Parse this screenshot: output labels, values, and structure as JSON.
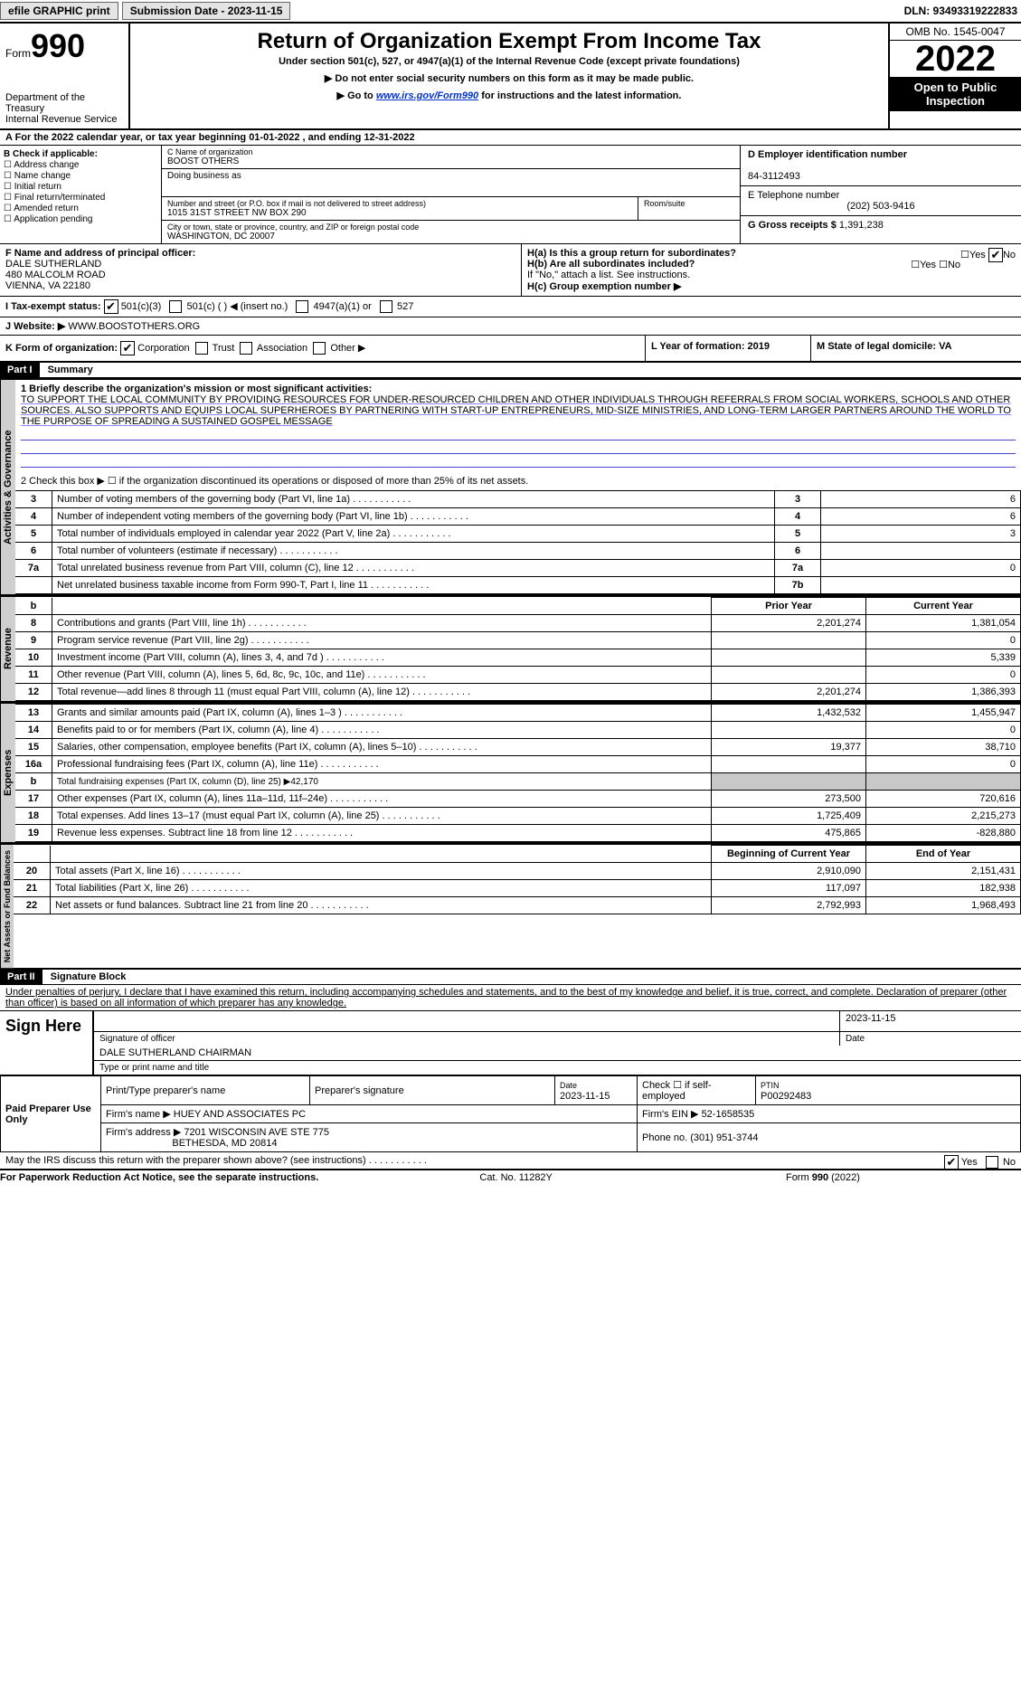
{
  "topbar": {
    "btn_efile": "efile GRAPHIC print",
    "btn_sub": "Submission Date - 2023-11-15",
    "dln": "DLN: 93493319222833"
  },
  "header": {
    "form_word": "Form",
    "form_num": "990",
    "dept": "Department of the Treasury",
    "irs": "Internal Revenue Service",
    "title": "Return of Organization Exempt From Income Tax",
    "sub1": "Under section 501(c), 527, or 4947(a)(1) of the Internal Revenue Code (except private foundations)",
    "sub2": "▶ Do not enter social security numbers on this form as it may be made public.",
    "sub3_pre": "▶ Go to ",
    "sub3_link": "www.irs.gov/Form990",
    "sub3_post": " for instructions and the latest information.",
    "omb": "OMB No. 1545-0047",
    "year": "2022",
    "inspect": "Open to Public Inspection"
  },
  "rowA": "A For the 2022 calendar year, or tax year beginning 01-01-2022    , and ending 12-31-2022",
  "B": {
    "title": "B Check if applicable:",
    "items": [
      "Address change",
      "Name change",
      "Initial return",
      "Final return/terminated",
      "Amended return",
      "Application pending"
    ]
  },
  "C": {
    "name_lbl": "C Name of organization",
    "name": "BOOST OTHERS",
    "dba_lbl": "Doing business as",
    "addr_lbl": "Number and street (or P.O. box if mail is not delivered to street address)",
    "room_lbl": "Room/suite",
    "addr": "1015 31ST STREET NW BOX 290",
    "city_lbl": "City or town, state or province, country, and ZIP or foreign postal code",
    "city": "WASHINGTON, DC  20007"
  },
  "D": {
    "lbl": "D Employer identification number",
    "val": "84-3112493"
  },
  "E": {
    "lbl": "E Telephone number",
    "val": "(202) 503-9416"
  },
  "G": {
    "lbl": "G Gross receipts $",
    "val": "1,391,238"
  },
  "F": {
    "lbl": "F  Name and address of principal officer:",
    "name": "DALE SUTHERLAND",
    "addr1": "480 MALCOLM ROAD",
    "addr2": "VIENNA, VA  22180"
  },
  "H": {
    "a": "H(a)  Is this a group return for subordinates?",
    "b": "H(b)  Are all subordinates included?",
    "note": "If \"No,\" attach a list. See instructions.",
    "c": "H(c)  Group exemption number ▶"
  },
  "I": "I     Tax-exempt status:",
  "I_opts": [
    "501(c)(3)",
    "501(c) (  ) ◀ (insert no.)",
    "4947(a)(1) or",
    "527"
  ],
  "J": {
    "lbl": "J    Website: ▶",
    "val": "WWW.BOOSTOTHERS.ORG"
  },
  "K": {
    "lbl": "K Form of organization:",
    "opts": [
      "Corporation",
      "Trust",
      "Association",
      "Other ▶"
    ]
  },
  "L": "L Year of formation: 2019",
  "M": "M State of legal domicile: VA",
  "partI": "Part I",
  "partI_title": "Summary",
  "mission_lbl": "1  Briefly describe the organization's mission or most significant activities:",
  "mission": "TO SUPPORT THE LOCAL COMMUNITY BY PROVIDING RESOURCES FOR UNDER-RESOURCED CHILDREN AND OTHER INDIVIDUALS THROUGH REFERRALS FROM SOCIAL WORKERS, SCHOOLS AND OTHER SOURCES. ALSO SUPPORTS AND EQUIPS LOCAL SUPERHEROES BY PARTNERING WITH START-UP ENTREPRENEURS, MID-SIZE MINISTRIES, AND LONG-TERM LARGER PARTNERS AROUND THE WORLD TO THE PURPOSE OF SPREADING A SUSTAINED GOSPEL MESSAGE",
  "line2": "2    Check this box ▶ ☐  if the organization discontinued its operations or disposed of more than 25% of its net assets.",
  "gov_rows": [
    {
      "n": "3",
      "d": "Number of voting members of the governing body (Part VI, line 1a)",
      "c": "3",
      "v": "6"
    },
    {
      "n": "4",
      "d": "Number of independent voting members of the governing body (Part VI, line 1b)",
      "c": "4",
      "v": "6"
    },
    {
      "n": "5",
      "d": "Total number of individuals employed in calendar year 2022 (Part V, line 2a)",
      "c": "5",
      "v": "3"
    },
    {
      "n": "6",
      "d": "Total number of volunteers (estimate if necessary)",
      "c": "6",
      "v": ""
    },
    {
      "n": "7a",
      "d": "Total unrelated business revenue from Part VIII, column (C), line 12",
      "c": "7a",
      "v": "0"
    },
    {
      "n": "",
      "d": "Net unrelated business taxable income from Form 990-T, Part I, line 11",
      "c": "7b",
      "v": ""
    }
  ],
  "rev_hdr": {
    "b": "b",
    "py": "Prior Year",
    "cy": "Current Year"
  },
  "rev_rows": [
    {
      "n": "8",
      "d": "Contributions and grants (Part VIII, line 1h)",
      "py": "2,201,274",
      "cy": "1,381,054"
    },
    {
      "n": "9",
      "d": "Program service revenue (Part VIII, line 2g)",
      "py": "",
      "cy": "0"
    },
    {
      "n": "10",
      "d": "Investment income (Part VIII, column (A), lines 3, 4, and 7d )",
      "py": "",
      "cy": "5,339"
    },
    {
      "n": "11",
      "d": "Other revenue (Part VIII, column (A), lines 5, 6d, 8c, 9c, 10c, and 11e)",
      "py": "",
      "cy": "0"
    },
    {
      "n": "12",
      "d": "Total revenue—add lines 8 through 11 (must equal Part VIII, column (A), line 12)",
      "py": "2,201,274",
      "cy": "1,386,393"
    }
  ],
  "exp_rows": [
    {
      "n": "13",
      "d": "Grants and similar amounts paid (Part IX, column (A), lines 1–3 )",
      "py": "1,432,532",
      "cy": "1,455,947"
    },
    {
      "n": "14",
      "d": "Benefits paid to or for members (Part IX, column (A), line 4)",
      "py": "",
      "cy": "0"
    },
    {
      "n": "15",
      "d": "Salaries, other compensation, employee benefits (Part IX, column (A), lines 5–10)",
      "py": "19,377",
      "cy": "38,710"
    },
    {
      "n": "16a",
      "d": "Professional fundraising fees (Part IX, column (A), line 11e)",
      "py": "",
      "cy": "0"
    },
    {
      "n": "b",
      "d": "Total fundraising expenses (Part IX, column (D), line 25) ▶42,170",
      "py": "SHADE",
      "cy": "SHADE"
    },
    {
      "n": "17",
      "d": "Other expenses (Part IX, column (A), lines 11a–11d, 11f–24e)",
      "py": "273,500",
      "cy": "720,616"
    },
    {
      "n": "18",
      "d": "Total expenses. Add lines 13–17 (must equal Part IX, column (A), line 25)",
      "py": "1,725,409",
      "cy": "2,215,273"
    },
    {
      "n": "19",
      "d": "Revenue less expenses. Subtract line 18 from line 12",
      "py": "475,865",
      "cy": "-828,880"
    }
  ],
  "net_hdr": {
    "py": "Beginning of Current Year",
    "cy": "End of Year"
  },
  "net_rows": [
    {
      "n": "20",
      "d": "Total assets (Part X, line 16)",
      "py": "2,910,090",
      "cy": "2,151,431"
    },
    {
      "n": "21",
      "d": "Total liabilities (Part X, line 26)",
      "py": "117,097",
      "cy": "182,938"
    },
    {
      "n": "22",
      "d": "Net assets or fund balances. Subtract line 21 from line 20",
      "py": "2,792,993",
      "cy": "1,968,493"
    }
  ],
  "partII": "Part II",
  "partII_title": "Signature Block",
  "perjury": "Under penalties of perjury, I declare that I have examined this return, including accompanying schedules and statements, and to the best of my knowledge and belief, it is true, correct, and complete. Declaration of preparer (other than officer) is based on all information of which preparer has any knowledge.",
  "sign": {
    "here": "Sign Here",
    "sig_lbl": "Signature of officer",
    "date": "2023-11-15",
    "date_lbl": "Date",
    "name": "DALE SUTHERLAND CHAIRMAN",
    "name_lbl": "Type or print name and title"
  },
  "prep": {
    "title": "Paid Preparer Use Only",
    "h1": "Print/Type preparer's name",
    "h2": "Preparer's signature",
    "h3": "Date",
    "h3v": "2023-11-15",
    "h4": "Check ☐ if self-employed",
    "h5": "PTIN",
    "h5v": "P00292483",
    "firm_lbl": "Firm's name    ▶",
    "firm": "HUEY AND ASSOCIATES PC",
    "ein_lbl": "Firm's EIN ▶",
    "ein": "52-1658535",
    "addr_lbl": "Firm's address ▶",
    "addr1": "7201 WISCONSIN AVE STE 775",
    "addr2": "BETHESDA, MD  20814",
    "phone_lbl": "Phone no.",
    "phone": "(301) 951-3744"
  },
  "may": "May the IRS discuss this return with the preparer shown above? (see instructions)",
  "footer": {
    "l": "For Paperwork Reduction Act Notice, see the separate instructions.",
    "m": "Cat. No. 11282Y",
    "r": "Form 990 (2022)"
  },
  "labels": {
    "gov": "Activities & Governance",
    "rev": "Revenue",
    "exp": "Expenses",
    "net": "Net Assets or Fund Balances"
  },
  "yn": {
    "yes": "Yes",
    "no": "No"
  }
}
